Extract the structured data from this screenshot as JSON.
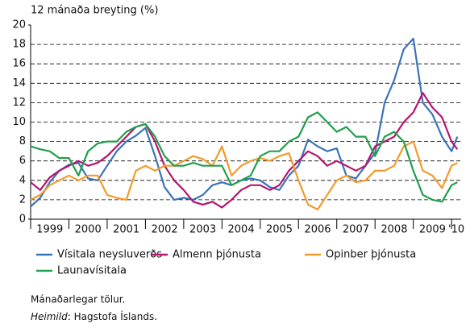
{
  "chart_data": {
    "type": "line",
    "y_label": "12 mánaða breyting (%)",
    "x": [
      1999,
      1999.25,
      1999.5,
      1999.75,
      2000,
      2000.25,
      2000.5,
      2000.75,
      2001,
      2001.25,
      2001.5,
      2001.75,
      2002,
      2002.25,
      2002.5,
      2002.75,
      2003,
      2003.25,
      2003.5,
      2003.75,
      2004,
      2004.25,
      2004.5,
      2004.75,
      2005,
      2005.25,
      2005.5,
      2005.75,
      2006,
      2006.25,
      2006.5,
      2006.75,
      2007,
      2007.25,
      2007.5,
      2007.75,
      2008,
      2008.25,
      2008.5,
      2008.75,
      2009,
      2009.25,
      2009.5,
      2009.75,
      2010,
      2010.15
    ],
    "xlim": [
      1999,
      2010.25
    ],
    "xticks": [
      1999,
      2000,
      2001,
      2002,
      2003,
      2004,
      2005,
      2006,
      2007,
      2008,
      2009,
      2010
    ],
    "year_labels": [
      "1999",
      "2000",
      "2001",
      "2002",
      "2003",
      "2004",
      "2005",
      "2006",
      "2007",
      "2008",
      "2009",
      "'10"
    ],
    "ylim": [
      0,
      20
    ],
    "yticks": [
      0,
      2,
      4,
      6,
      8,
      10,
      12,
      14,
      16,
      18,
      20
    ],
    "grid": true,
    "series": [
      {
        "name": "Vísitala neysluverðs",
        "color": "#3b73b9",
        "values": [
          1.3,
          2.2,
          3.8,
          5.0,
          5.6,
          5.8,
          4.2,
          4.0,
          5.5,
          7.0,
          8.0,
          8.6,
          9.4,
          6.5,
          3.3,
          2.0,
          2.2,
          2.0,
          2.5,
          3.5,
          3.8,
          3.5,
          4.0,
          4.2,
          4.0,
          3.3,
          3.0,
          4.5,
          5.5,
          8.2,
          7.5,
          7.0,
          7.3,
          4.5,
          4.2,
          5.5,
          6.8,
          12.0,
          14.3,
          17.5,
          18.6,
          12.0,
          10.8,
          8.5,
          7.0,
          8.5
        ]
      },
      {
        "name": "Almenn þjónusta",
        "color": "#b5146f",
        "values": [
          3.8,
          3.0,
          4.3,
          5.0,
          5.5,
          6.0,
          5.5,
          5.8,
          6.5,
          7.5,
          8.5,
          9.5,
          9.8,
          8.0,
          5.5,
          4.0,
          3.0,
          1.8,
          1.5,
          1.8,
          1.2,
          2.0,
          3.0,
          3.5,
          3.5,
          3.0,
          3.5,
          5.0,
          6.0,
          7.0,
          6.5,
          5.5,
          6.0,
          5.5,
          5.0,
          5.5,
          7.5,
          8.0,
          8.5,
          10.0,
          11.0,
          13.0,
          11.5,
          10.5,
          8.0,
          7.2
        ]
      },
      {
        "name": "Opinber þjónusta",
        "color": "#f39a2b",
        "values": [
          2.0,
          2.5,
          3.5,
          4.0,
          4.5,
          4.0,
          4.5,
          4.5,
          2.5,
          2.2,
          2.0,
          5.0,
          5.5,
          5.0,
          5.5,
          5.5,
          6.0,
          6.5,
          6.2,
          5.5,
          7.5,
          4.5,
          5.5,
          6.0,
          6.3,
          6.0,
          6.5,
          6.8,
          4.0,
          1.5,
          1.0,
          2.5,
          4.0,
          4.5,
          3.8,
          4.0,
          5.0,
          5.0,
          5.5,
          7.5,
          8.0,
          5.0,
          4.5,
          3.2,
          5.5,
          5.8
        ]
      },
      {
        "name": "Launavísitala",
        "color": "#1fa04a",
        "values": [
          7.5,
          7.2,
          7.0,
          6.3,
          6.3,
          4.5,
          7.0,
          7.8,
          8.0,
          8.0,
          9.0,
          9.5,
          9.8,
          8.5,
          6.5,
          5.5,
          5.5,
          5.8,
          5.5,
          5.5,
          5.5,
          3.5,
          4.0,
          4.5,
          6.5,
          7.0,
          7.0,
          8.0,
          8.5,
          10.5,
          11.0,
          10.0,
          9.0,
          9.5,
          8.5,
          8.5,
          6.5,
          8.5,
          9.0,
          8.0,
          5.0,
          2.5,
          2.0,
          1.8,
          3.5,
          3.8
        ]
      }
    ],
    "note": "Mánaðarlegar tölur.",
    "source_label": "Heimild",
    "source_text": ": Hagstofa Íslands."
  }
}
